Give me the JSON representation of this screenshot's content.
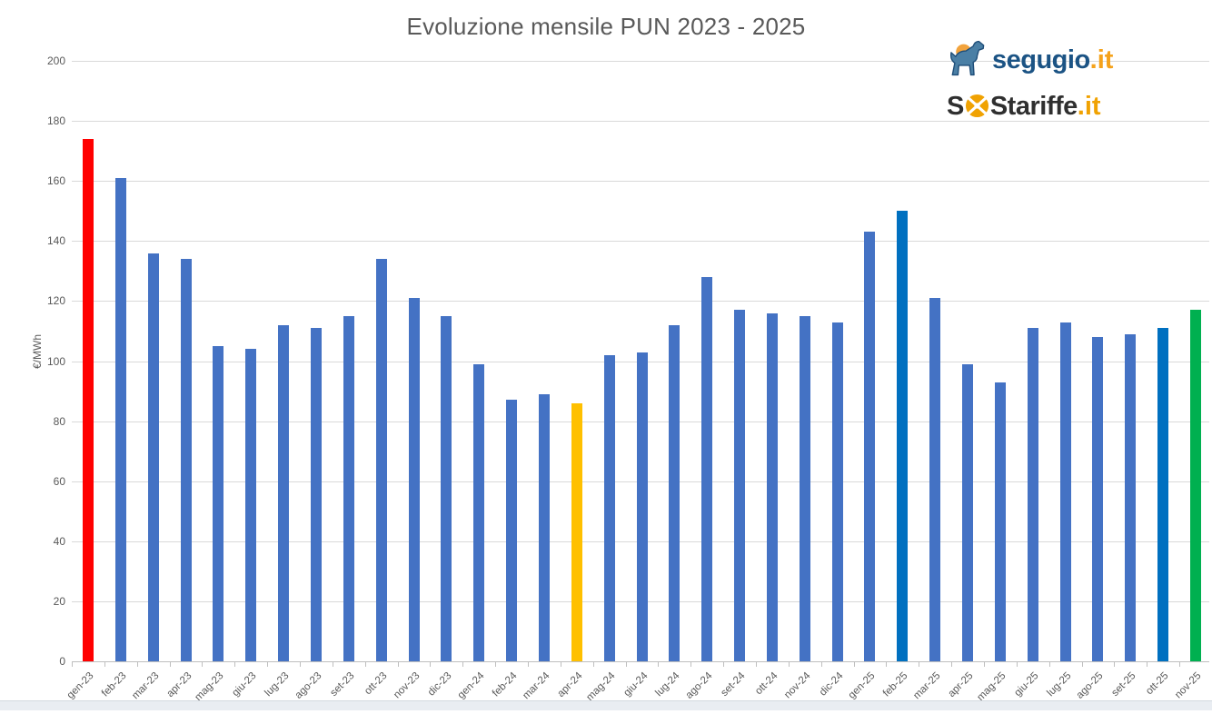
{
  "chart_data": {
    "type": "bar",
    "title": "Evoluzione mensile PUN 2023 - 2025",
    "xlabel": "",
    "ylabel": "€/MWh",
    "ylim": [
      0,
      200
    ],
    "ytick_step": 20,
    "yticks": [
      0,
      20,
      40,
      60,
      80,
      100,
      120,
      140,
      160,
      180,
      200
    ],
    "grid": true,
    "legend": "none",
    "categories": [
      "gen-23",
      "feb-23",
      "mar-23",
      "apr-23",
      "mag-23",
      "giu-23",
      "lug-23",
      "ago-23",
      "set-23",
      "ott-23",
      "nov-23",
      "dic-23",
      "gen-24",
      "feb-24",
      "mar-24",
      "apr-24",
      "mag-24",
      "giu-24",
      "lug-24",
      "ago-24",
      "set-24",
      "ott-24",
      "nov-24",
      "dic-24",
      "gen-25",
      "feb-25",
      "mar-25",
      "apr-25",
      "mag-25",
      "giu-25",
      "lug-25",
      "ago-25",
      "set-25",
      "ott-25",
      "nov-25"
    ],
    "values": [
      174,
      161,
      136,
      134,
      105,
      104,
      112,
      111,
      115,
      134,
      121,
      115,
      99,
      87,
      89,
      86,
      102,
      103,
      112,
      128,
      117,
      116,
      115,
      113,
      143,
      150,
      121,
      99,
      93,
      111,
      113,
      108,
      109,
      111,
      117
    ],
    "colors": [
      "#FF0000",
      "#4472C4",
      "#4472C4",
      "#4472C4",
      "#4472C4",
      "#4472C4",
      "#4472C4",
      "#4472C4",
      "#4472C4",
      "#4472C4",
      "#4472C4",
      "#4472C4",
      "#4472C4",
      "#4472C4",
      "#4472C4",
      "#FFC000",
      "#4472C4",
      "#4472C4",
      "#4472C4",
      "#4472C4",
      "#4472C4",
      "#4472C4",
      "#4472C4",
      "#4472C4",
      "#4472C4",
      "#0070C0",
      "#4472C4",
      "#4472C4",
      "#4472C4",
      "#4472C4",
      "#4472C4",
      "#4472C4",
      "#4472C4",
      "#0070C0",
      "#00B050"
    ],
    "highlight_colors": {
      "default_bar": "#4472C4",
      "gen-23": "#FF0000",
      "apr-24": "#FFC000",
      "feb-25": "#0070C0",
      "ott-25": "#0070C0",
      "nov-25": "#00B050"
    }
  },
  "branding": {
    "segugio": {
      "name": "segugio",
      "tld": ".it",
      "text_color": "#1b5384",
      "tld_color": "#f5a21b"
    },
    "sostariffe": {
      "name_s": "S",
      "name_rest": "Stariffe",
      "tld": ".it",
      "text_color": "#2f2f2f",
      "tld_color": "#f0a202"
    }
  }
}
